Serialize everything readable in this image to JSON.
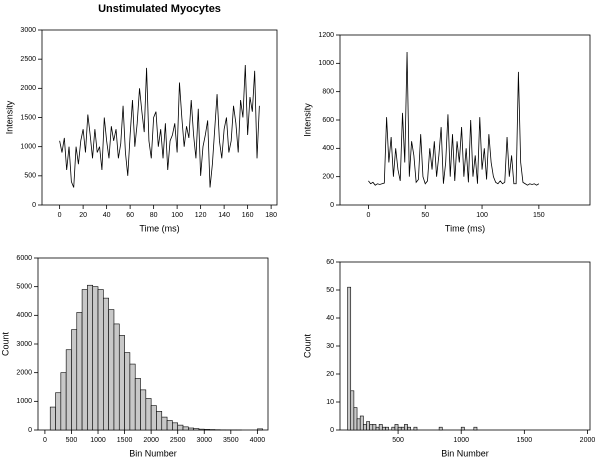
{
  "chart_data": [
    {
      "type": "line",
      "title": "Unstimulated Myocytes",
      "x_label": "Time (ms)",
      "y_label": "Intensity",
      "color": "#000000",
      "x": [
        0,
        2,
        4,
        6,
        8,
        10,
        12,
        14,
        16,
        18,
        20,
        22,
        24,
        26,
        28,
        30,
        32,
        34,
        36,
        38,
        40,
        42,
        44,
        46,
        48,
        50,
        52,
        54,
        56,
        58,
        60,
        62,
        64,
        66,
        68,
        70,
        72,
        74,
        76,
        78,
        80,
        82,
        84,
        86,
        88,
        90,
        92,
        94,
        96,
        98,
        100,
        102,
        104,
        106,
        108,
        110,
        112,
        114,
        116,
        118,
        120,
        122,
        124,
        126,
        128,
        130,
        132,
        134,
        136,
        138,
        140,
        142,
        144,
        146,
        148,
        150,
        152,
        154,
        156,
        158,
        160,
        162,
        164,
        166,
        168,
        170
      ],
      "values": [
        1100,
        900,
        1150,
        600,
        1000,
        400,
        300,
        1000,
        700,
        1100,
        1300,
        900,
        1550,
        1200,
        800,
        1300,
        900,
        1000,
        600,
        1500,
        1100,
        800,
        1350,
        1100,
        1300,
        800,
        1050,
        1700,
        900,
        500,
        1200,
        1800,
        1000,
        1400,
        2000,
        1600,
        1250,
        2350,
        1100,
        800,
        1500,
        1600,
        1000,
        1300,
        800,
        1400,
        600,
        1100,
        1200,
        1400,
        900,
        2100,
        1500,
        1000,
        1350,
        1150,
        1800,
        1200,
        800,
        1650,
        500,
        1000,
        1200,
        1450,
        300,
        700,
        1300,
        1900,
        1100,
        800,
        1300,
        1500,
        900,
        1100,
        1700,
        1400,
        900,
        1800,
        1500,
        2400,
        1200,
        1850,
        1600,
        2300,
        800,
        1700
      ],
      "xlim": [
        -15,
        185
      ],
      "xticks": [
        0,
        20,
        40,
        60,
        80,
        100,
        120,
        140,
        160,
        180
      ],
      "ylim": [
        0,
        3000
      ],
      "yticks": [
        0,
        500,
        1000,
        1500,
        2000,
        2500,
        3000
      ]
    },
    {
      "type": "line",
      "x_label": "Time (ms)",
      "y_label": "Intensity",
      "color": "#000000",
      "x": [
        0,
        2,
        4,
        6,
        8,
        10,
        12,
        14,
        16,
        18,
        20,
        22,
        24,
        26,
        28,
        30,
        32,
        34,
        36,
        38,
        40,
        42,
        44,
        46,
        48,
        50,
        52,
        54,
        56,
        58,
        60,
        62,
        64,
        66,
        68,
        70,
        72,
        74,
        76,
        78,
        80,
        82,
        84,
        86,
        88,
        90,
        92,
        94,
        96,
        98,
        100,
        102,
        104,
        106,
        108,
        110,
        112,
        114,
        116,
        118,
        120,
        122,
        124,
        126,
        128,
        130,
        132,
        134,
        136,
        138,
        140,
        142,
        144,
        146,
        148,
        150
      ],
      "values": [
        170,
        150,
        160,
        140,
        150,
        145,
        150,
        155,
        620,
        300,
        480,
        200,
        400,
        250,
        170,
        650,
        300,
        1080,
        200,
        450,
        350,
        160,
        180,
        500,
        200,
        150,
        170,
        400,
        250,
        450,
        200,
        350,
        550,
        150,
        300,
        640,
        200,
        500,
        170,
        450,
        300,
        550,
        200,
        400,
        160,
        600,
        200,
        350,
        150,
        620,
        250,
        400,
        180,
        500,
        300,
        200,
        160,
        150,
        170,
        150,
        160,
        480,
        200,
        350,
        150,
        150,
        940,
        300,
        160,
        150,
        140,
        150,
        145,
        150,
        140,
        150
      ],
      "xlim": [
        -25,
        195
      ],
      "xticks": [
        0,
        50,
        100,
        150
      ],
      "ylim": [
        0,
        1200
      ],
      "yticks": [
        0,
        200,
        400,
        600,
        800,
        1000,
        1200
      ]
    },
    {
      "type": "histogram",
      "x_label": "Bin Number",
      "y_label": "Count",
      "color": "#c8c8c8",
      "bins": [
        100,
        200,
        300,
        400,
        500,
        600,
        700,
        800,
        900,
        1000,
        1100,
        1200,
        1300,
        1400,
        1500,
        1600,
        1700,
        1800,
        1900,
        2000,
        2100,
        2200,
        2300,
        2400,
        2500,
        2600,
        2700,
        2800,
        2900,
        3000,
        3100,
        3200,
        3300,
        3400,
        3500,
        3600,
        3700,
        3800,
        3900,
        4000,
        4100
      ],
      "values": [
        800,
        1300,
        2000,
        2800,
        3500,
        4100,
        4900,
        5050,
        5000,
        4900,
        4600,
        4200,
        3700,
        3300,
        2700,
        2300,
        1800,
        1400,
        1100,
        850,
        650,
        450,
        330,
        250,
        170,
        110,
        70,
        50,
        30,
        20,
        15,
        10,
        6,
        4,
        2,
        1,
        0,
        0,
        0,
        40
      ],
      "xlim": [
        -130,
        4200
      ],
      "xticks": [
        0,
        500,
        1000,
        1500,
        2000,
        2500,
        3000,
        3500,
        4000
      ],
      "ylim": [
        0,
        6000
      ],
      "yticks": [
        0,
        1000,
        2000,
        3000,
        4000,
        5000,
        6000
      ]
    },
    {
      "type": "histogram",
      "x_label": "Bin Number",
      "y_label": "Count",
      "color": "#c8c8c8",
      "bins": [
        100,
        125,
        150,
        175,
        200,
        225,
        250,
        275,
        300,
        325,
        350,
        375,
        400,
        425,
        450,
        475,
        500,
        525,
        550,
        575,
        600,
        625,
        650,
        675,
        700,
        725,
        750,
        775,
        800,
        825,
        850,
        875,
        900,
        925,
        950,
        975,
        1000,
        1025,
        1050,
        1075,
        1100,
        1125
      ],
      "values": [
        51,
        14,
        8,
        4,
        5,
        2,
        3,
        2,
        2,
        1,
        2,
        1,
        1,
        0,
        1,
        2,
        1,
        1,
        2,
        1,
        0,
        1,
        0,
        0,
        0,
        0,
        0,
        0,
        0,
        1,
        0,
        0,
        0,
        0,
        0,
        0,
        1,
        0,
        0,
        0,
        1
      ],
      "xlim": [
        40,
        2020
      ],
      "xticks": [
        500,
        1000,
        1500,
        2000
      ],
      "ylim": [
        0,
        60
      ],
      "yticks": [
        0,
        10,
        20,
        30,
        40,
        50,
        60
      ]
    }
  ]
}
